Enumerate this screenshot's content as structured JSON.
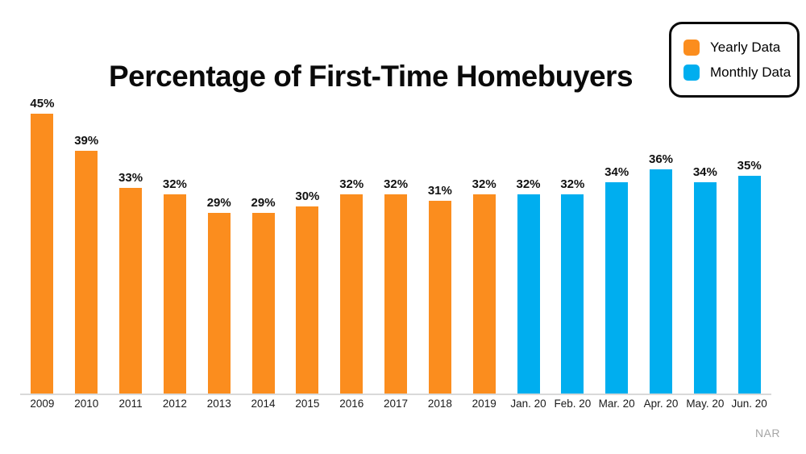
{
  "title": "Percentage of First-Time Homebuyers",
  "source": "NAR",
  "legend": {
    "items": [
      {
        "label": "Yearly Data",
        "color": "#FB8D1E"
      },
      {
        "label": "Monthly Data",
        "color": "#00AEEF"
      }
    ]
  },
  "colors": {
    "yearly_bar": "#FB8D1E",
    "monthly_bar": "#00AEEF",
    "axis_line": "#D9D9D9",
    "source_text": "#A6A6A6",
    "title_text": "#0A0A0A"
  },
  "chart_data": {
    "type": "bar",
    "title": "Percentage of First-Time Homebuyers",
    "xlabel": "",
    "ylabel": "",
    "value_suffix": "%",
    "ylim": [
      0,
      50
    ],
    "grid": false,
    "legend_position": "top-right",
    "categories": [
      "2009",
      "2010",
      "2011",
      "2012",
      "2013",
      "2014",
      "2015",
      "2016",
      "2017",
      "2018",
      "2019",
      "Jan. 20",
      "Feb. 20",
      "Mar. 20",
      "Apr. 20",
      "May. 20",
      "Jun. 20"
    ],
    "series": [
      {
        "name": "Yearly Data",
        "color": "#FB8D1E",
        "values": [
          45,
          39,
          33,
          32,
          29,
          29,
          30,
          32,
          32,
          31,
          32,
          null,
          null,
          null,
          null,
          null,
          null
        ]
      },
      {
        "name": "Monthly Data",
        "color": "#00AEEF",
        "values": [
          null,
          null,
          null,
          null,
          null,
          null,
          null,
          null,
          null,
          null,
          null,
          32,
          32,
          34,
          36,
          34,
          35
        ]
      }
    ]
  }
}
